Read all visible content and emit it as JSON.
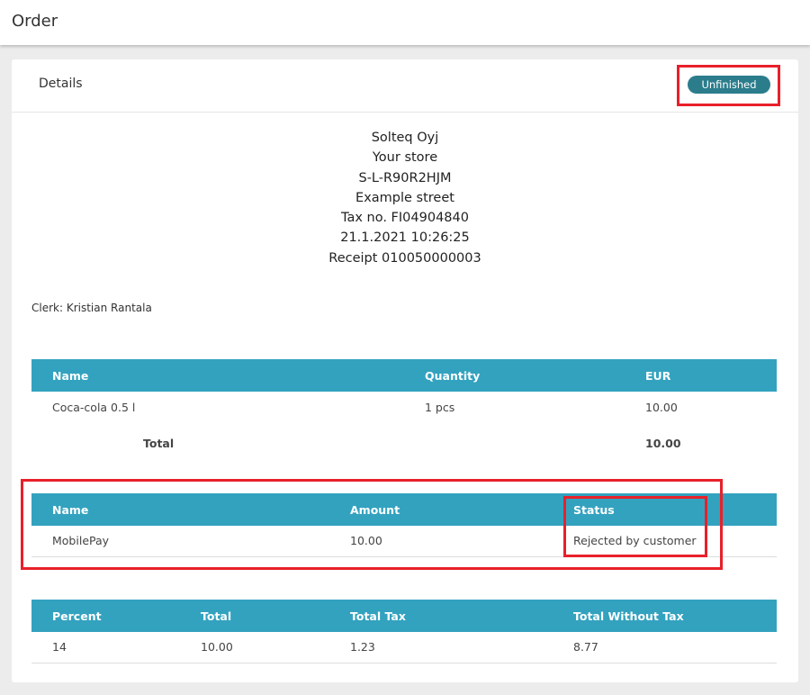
{
  "page_title": "Order",
  "card": {
    "title": "Details",
    "status": "Unfinished"
  },
  "receipt": {
    "lines": [
      "Solteq Oyj",
      "Your store",
      "S-L-R90R2HJM",
      "Example street",
      "Tax no. FI04904840",
      "21.1.2021 10:26:25",
      "Receipt 010050000003"
    ]
  },
  "clerk": "Clerk: Kristian Rantala",
  "items": {
    "headers": [
      "Name",
      "Quantity",
      "EUR"
    ],
    "rows": [
      [
        "Coca-cola 0.5 l",
        "1 pcs",
        "10.00"
      ]
    ],
    "total_label": "Total",
    "total_value": "10.00"
  },
  "payments": {
    "headers": [
      "Name",
      "Amount",
      "Status"
    ],
    "rows": [
      [
        "MobilePay",
        "10.00",
        "Rejected by customer"
      ]
    ]
  },
  "taxes": {
    "headers": [
      "Percent",
      "Total",
      "Total Tax",
      "Total Without Tax"
    ],
    "rows": [
      [
        "14",
        "10.00",
        "1.23",
        "8.77"
      ]
    ]
  },
  "colors": {
    "header": "#33a2bf",
    "badge": "#2b7d8c",
    "highlight": "#e8202a"
  }
}
